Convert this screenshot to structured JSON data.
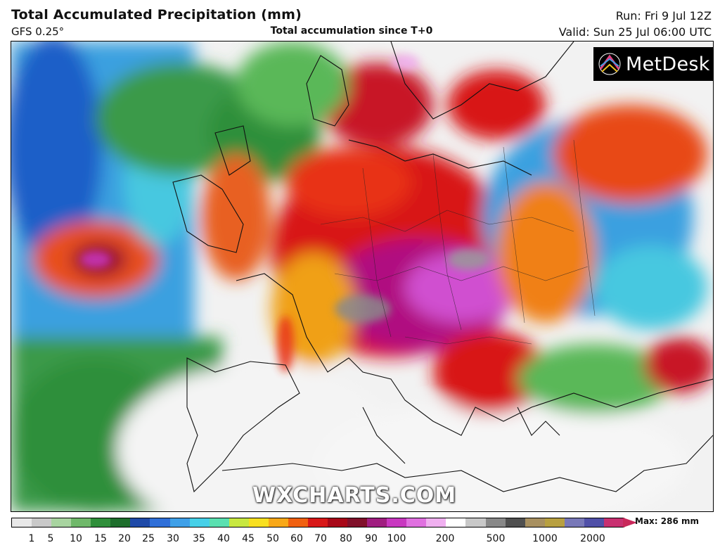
{
  "header": {
    "title": "Total Accumulated Precipitation (mm)",
    "model": "GFS 0.25°",
    "subtitle": "Total accumulation since T+0",
    "run": "Run: Fri 9 Jul 12Z",
    "valid": "Valid: Sun 25 Jul 06:00 UTC"
  },
  "logo": {
    "text": "MetDesk",
    "icon": "metdesk-logo-icon"
  },
  "watermark": "WXCHARTS.COM",
  "colorbar": {
    "max_label": "Max: 286 mm",
    "ticks": [
      "1",
      "5",
      "10",
      "15",
      "20",
      "25",
      "30",
      "35",
      "40",
      "45",
      "50",
      "60",
      "70",
      "80",
      "90",
      "100",
      "200",
      "500",
      "1000",
      "2000"
    ],
    "colors": [
      "#e8e8e8",
      "#c9c9c9",
      "#a8d4a0",
      "#6fb86a",
      "#2f8f3a",
      "#1e6e2c",
      "#1f4aa8",
      "#2f6fd8",
      "#3fa0e8",
      "#46d0e8",
      "#5ae0b0",
      "#c8e840",
      "#f8e020",
      "#f8a818",
      "#f06010",
      "#d81818",
      "#a80818",
      "#80102a",
      "#a01e80",
      "#c838c0",
      "#e070e0",
      "#f0b0f0",
      "#ffffff",
      "#c8c8c8",
      "#888888",
      "#505050",
      "#a89060",
      "#b8a040",
      "#7878b8",
      "#5050a8",
      "#c83070"
    ]
  }
}
